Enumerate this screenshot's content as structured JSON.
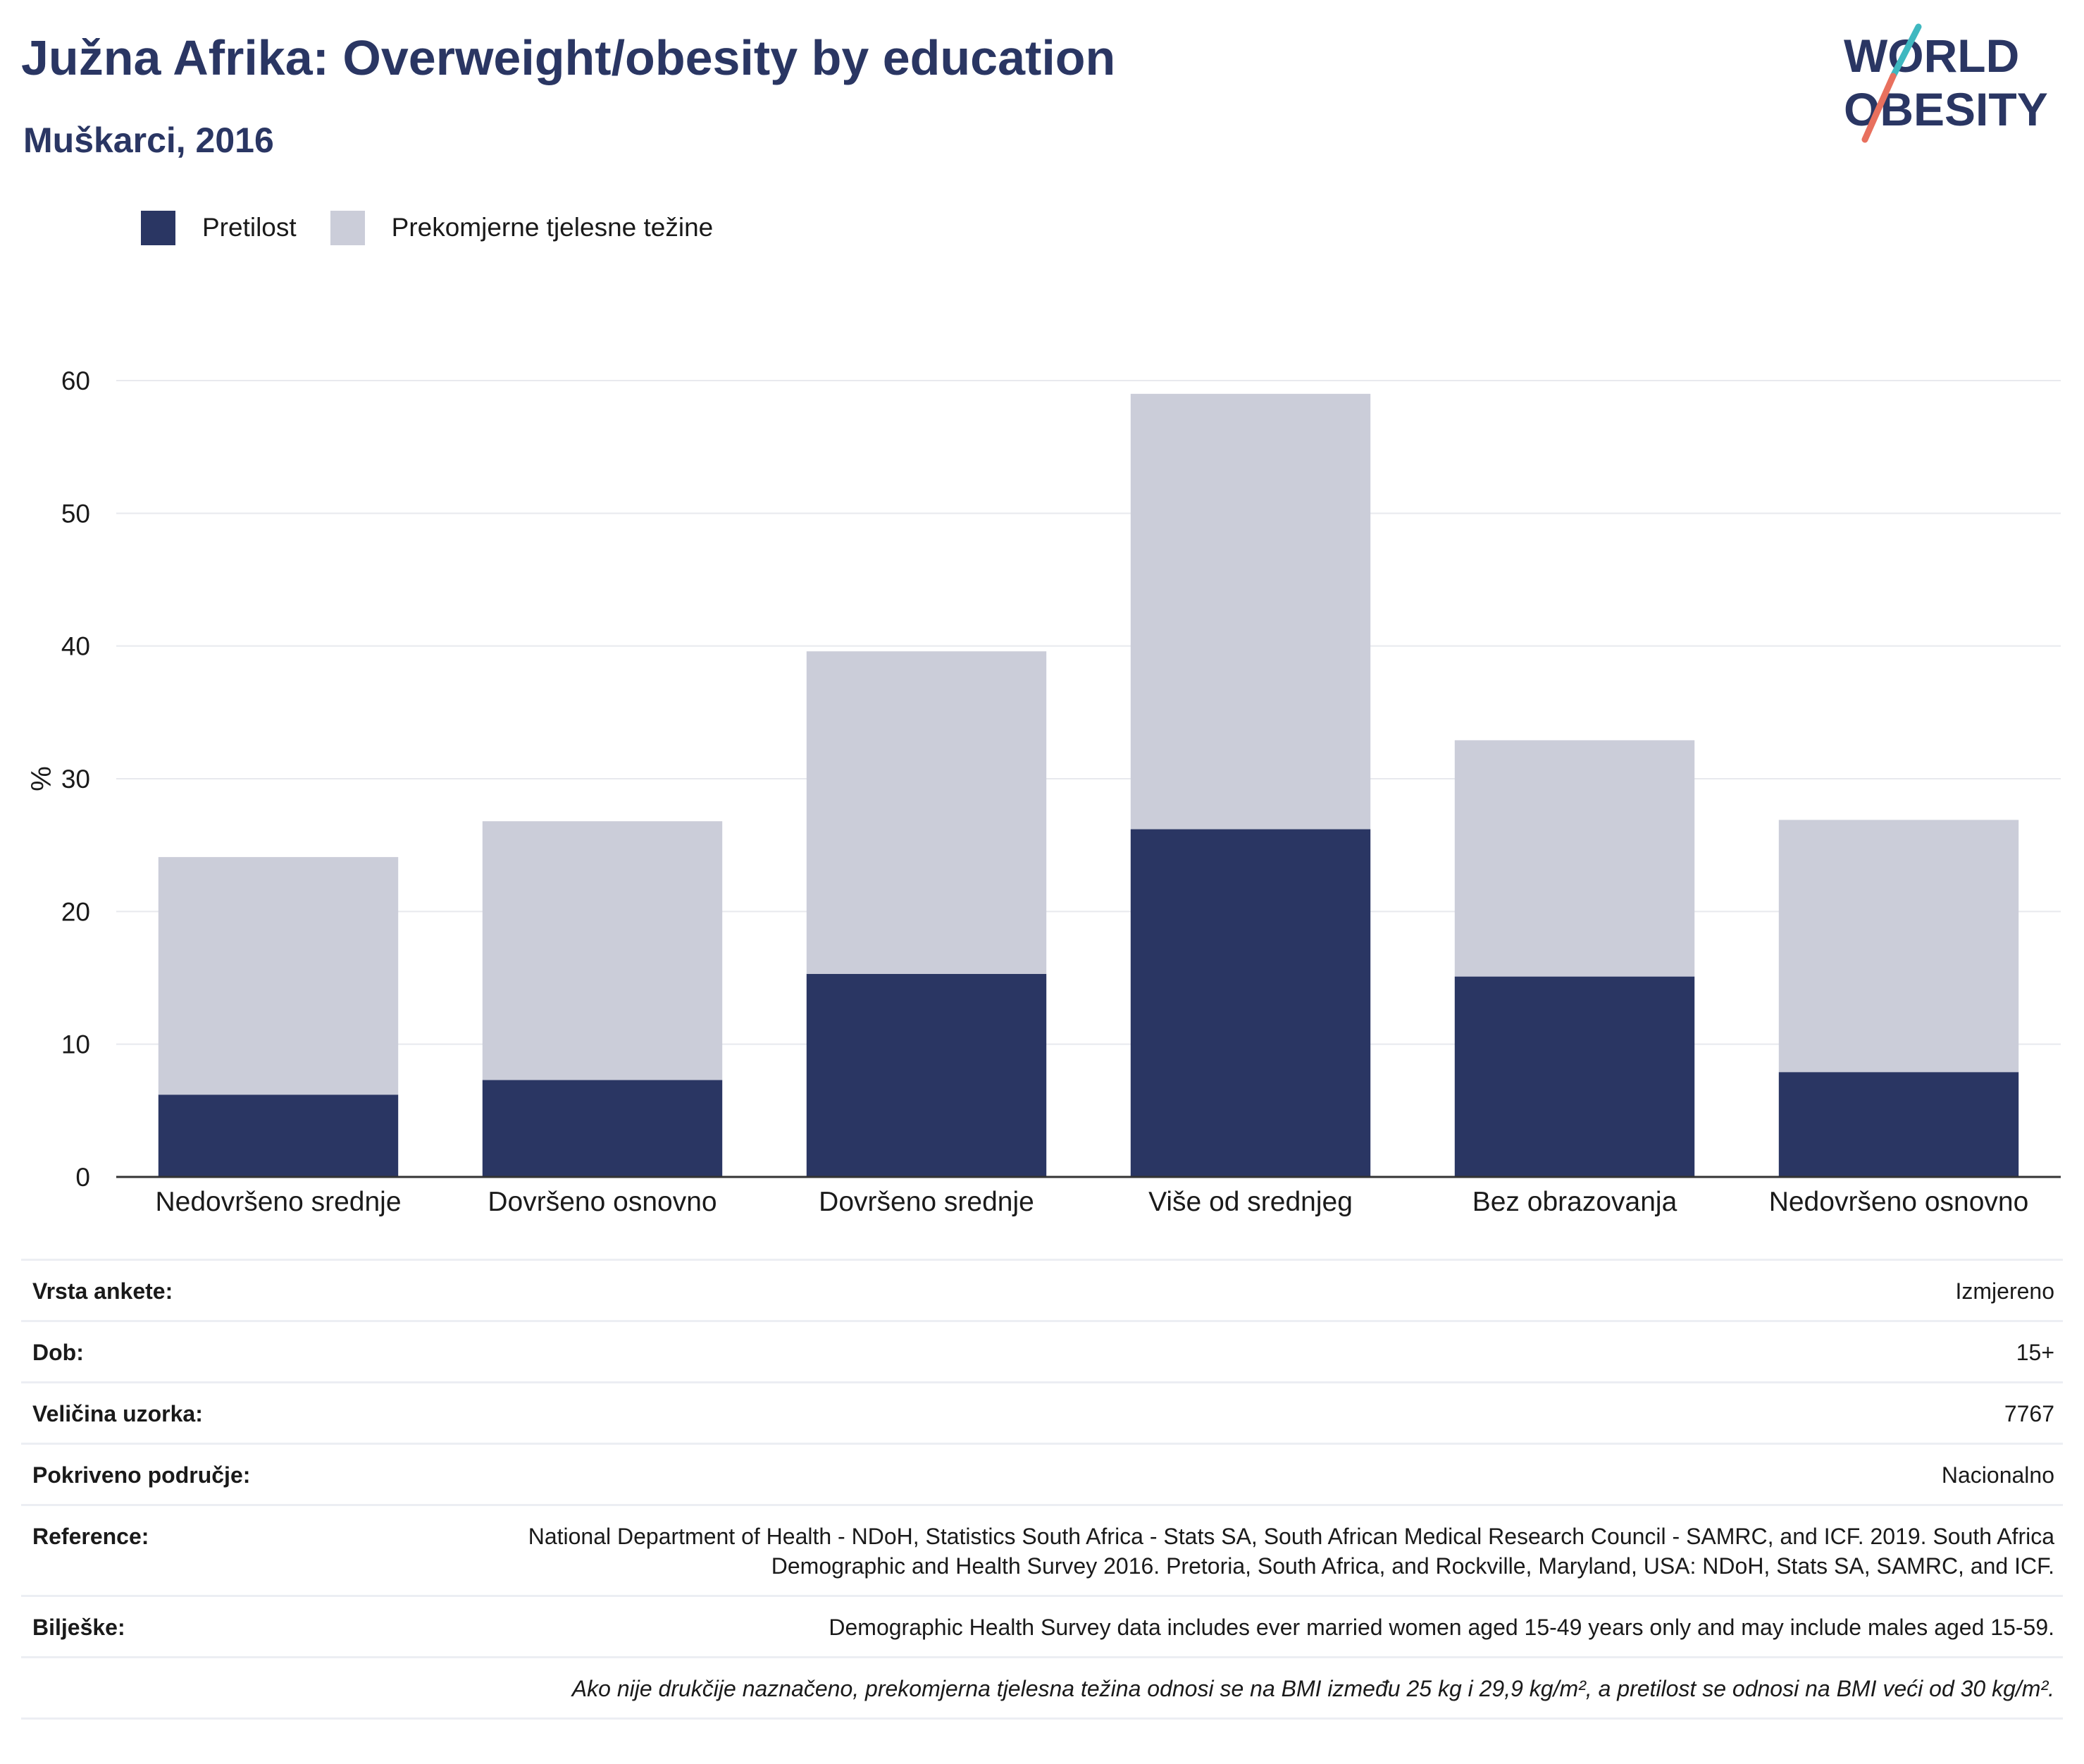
{
  "header": {
    "title": "Južna Afrika: Overweight/obesity by education",
    "subtitle": "Muškarci, 2016"
  },
  "logo": {
    "line1": "WORLD",
    "line2": "OBESITY"
  },
  "legend": [
    {
      "label": "Pretilost",
      "color": "#2a3663"
    },
    {
      "label": "Prekomjerne tjelesne težine",
      "color": "#cbcdd9"
    }
  ],
  "chart_data": {
    "type": "bar",
    "stacked": true,
    "categories": [
      "Nedovršeno srednje",
      "Dovršeno osnovno",
      "Dovršeno srednje",
      "Više od srednjeg",
      "Bez obrazovanja",
      "Nedovršeno osnovno"
    ],
    "series": [
      {
        "name": "Pretilost",
        "color": "#2a3663",
        "values": [
          6.2,
          7.3,
          15.3,
          26.2,
          15.1,
          7.9
        ]
      },
      {
        "name": "Prekomjerne tjelesne težine",
        "color": "#cbcdd9",
        "values": [
          17.9,
          19.5,
          24.3,
          32.8,
          17.8,
          19.0
        ]
      }
    ],
    "ylabel": "%",
    "ylim": [
      0,
      60
    ],
    "yticks": [
      0,
      10,
      20,
      30,
      40,
      50,
      60
    ],
    "grid": true,
    "legend_position": "top-left"
  },
  "meta": [
    {
      "key": "Vrsta ankete:",
      "value": "Izmjereno"
    },
    {
      "key": "Dob:",
      "value": "15+"
    },
    {
      "key": "Veličina uzorka:",
      "value": "7767"
    },
    {
      "key": "Pokriveno područje:",
      "value": "Nacionalno"
    },
    {
      "key": "Reference:",
      "value": "National Department of Health - NDoH, Statistics South Africa - Stats SA, South African Medical Research Council - SAMRC, and ICF. 2019. South Africa Demographic and Health Survey 2016. Pretoria, South Africa, and Rockville, Maryland, USA: NDoH, Stats SA, SAMRC, and ICF."
    },
    {
      "key": "Bilješke:",
      "value": "Demographic Health Survey data includes ever married women aged 15-49 years only and may include males aged 15-59."
    }
  ],
  "note": "Ako nije drukčije naznačeno, prekomjerna tjelesna težina odnosi se na BMI između 25 kg i 29,9 kg/m², a pretilost se odnosi na BMI veći od 30 kg/m²."
}
